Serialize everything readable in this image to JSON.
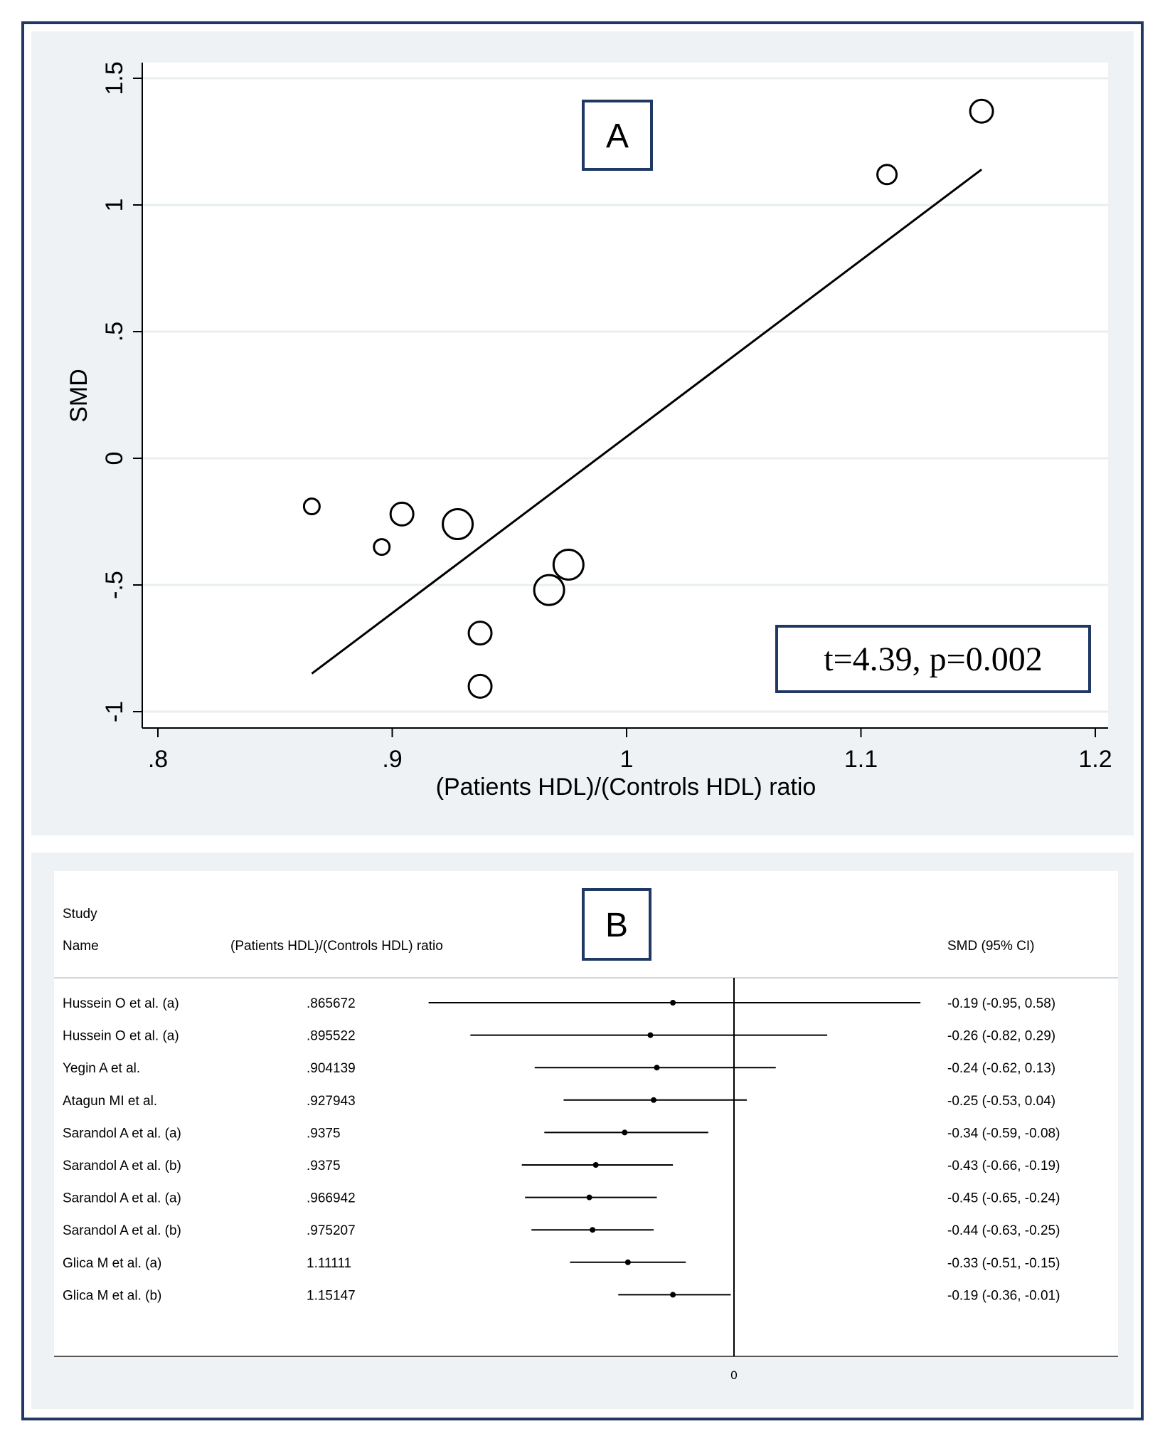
{
  "colors": {
    "frame_border": "#1f3864",
    "panel_background": "#eef2f4",
    "plot_background": "#ffffff",
    "gridline": "#e8eef0",
    "ink": "#000000"
  },
  "chart_data": [
    {
      "type": "scatter",
      "panel_label": "A",
      "xlabel": "(Patients HDL)/(Controls HDL) ratio",
      "ylabel": "SMD",
      "xlim": [
        0.8,
        1.2
      ],
      "ylim": [
        -1,
        1.5
      ],
      "x_ticks": [
        0.8,
        0.9,
        1.0,
        1.1,
        1.2
      ],
      "x_tick_labels": [
        ".8",
        ".9",
        "1",
        "1.1",
        "1.2"
      ],
      "y_ticks": [
        -1,
        -0.5,
        0,
        0.5,
        1,
        1.5
      ],
      "y_tick_labels": [
        "-1",
        "-.5",
        "0",
        ".5",
        "1",
        "1.5"
      ],
      "grid": true,
      "annotation": "t=4.39, p=0.002",
      "points": [
        {
          "x": 0.865672,
          "y": -0.19,
          "weight": 1
        },
        {
          "x": 0.895522,
          "y": -0.35,
          "weight": 1
        },
        {
          "x": 0.904139,
          "y": -0.22,
          "weight": 2
        },
        {
          "x": 0.927943,
          "y": -0.26,
          "weight": 3
        },
        {
          "x": 0.9375,
          "y": -0.69,
          "weight": 2
        },
        {
          "x": 0.9375,
          "y": -0.9,
          "weight": 2
        },
        {
          "x": 0.966942,
          "y": -0.52,
          "weight": 3
        },
        {
          "x": 0.975207,
          "y": -0.42,
          "weight": 3
        },
        {
          "x": 1.11111,
          "y": 1.12,
          "weight": 1.5
        },
        {
          "x": 1.15147,
          "y": 1.37,
          "weight": 2
        }
      ],
      "fit_line": {
        "x": [
          0.865672,
          1.15147
        ],
        "y": [
          -0.85,
          1.14
        ]
      }
    },
    {
      "type": "forest",
      "panel_label": "B",
      "headers": {
        "study_top": "Study",
        "study_bottom": "Name",
        "ratio": "(Patients HDL)/(Controls HDL) ratio",
        "smd": "SMD (95% CI)"
      },
      "zero_label": "0",
      "studies": [
        {
          "name": "Hussein O et al. (a)",
          "ratio": ".865672",
          "ci_text": "-0.19 (-0.95, 0.58)",
          "est": -0.19,
          "lo": -0.95,
          "hi": 0.58
        },
        {
          "name": "Hussein O et al. (a)",
          "ratio": ".895522",
          "ci_text": "-0.26 (-0.82, 0.29)",
          "est": -0.26,
          "lo": -0.82,
          "hi": 0.29
        },
        {
          "name": "Yegin A et al.",
          "ratio": ".904139",
          "ci_text": "-0.24 (-0.62, 0.13)",
          "est": -0.24,
          "lo": -0.62,
          "hi": 0.13
        },
        {
          "name": "Atagun MI et al.",
          "ratio": ".927943",
          "ci_text": "-0.25 (-0.53, 0.04)",
          "est": -0.25,
          "lo": -0.53,
          "hi": 0.04
        },
        {
          "name": "Sarandol A et al. (a)",
          "ratio": ".9375",
          "ci_text": "-0.34 (-0.59, -0.08)",
          "est": -0.34,
          "lo": -0.59,
          "hi": -0.08
        },
        {
          "name": "Sarandol A et al. (b)",
          "ratio": ".9375",
          "ci_text": "-0.43 (-0.66, -0.19)",
          "est": -0.43,
          "lo": -0.66,
          "hi": -0.19
        },
        {
          "name": "Sarandol A et al. (a)",
          "ratio": ".966942",
          "ci_text": "-0.45 (-0.65, -0.24)",
          "est": -0.45,
          "lo": -0.65,
          "hi": -0.24
        },
        {
          "name": "Sarandol A et al. (b)",
          "ratio": ".975207",
          "ci_text": "-0.44 (-0.63, -0.25)",
          "est": -0.44,
          "lo": -0.63,
          "hi": -0.25
        },
        {
          "name": "Glica M et al. (a)",
          "ratio": "1.11111",
          "ci_text": "-0.33 (-0.51, -0.15)",
          "est": -0.33,
          "lo": -0.51,
          "hi": -0.15
        },
        {
          "name": "Glica M et al. (b)",
          "ratio": "1.15147",
          "ci_text": "-0.19 (-0.36, -0.01)",
          "est": -0.19,
          "lo": -0.36,
          "hi": -0.01
        }
      ]
    }
  ]
}
